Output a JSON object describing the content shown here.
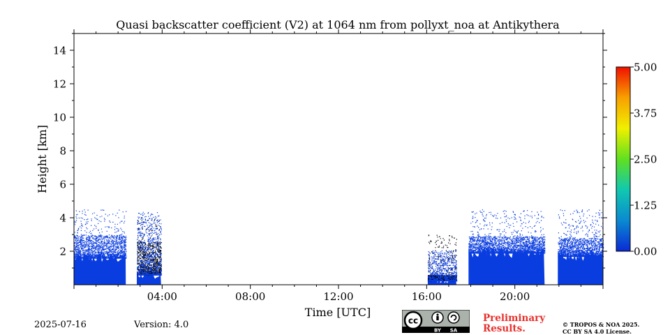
{
  "chart_data": {
    "type": "heatmap",
    "title": "Quasi backscatter coefficient (V2) at 1064 nm from pollyxt_noa at Antikythera",
    "xlabel": "Time [UTC]",
    "ylabel": "Height [km]",
    "xlim_hours": [
      0,
      24
    ],
    "ylim_km": [
      0,
      15
    ],
    "x_ticks": [
      {
        "hour": 4,
        "label": "04:00"
      },
      {
        "hour": 8,
        "label": "08:00"
      },
      {
        "hour": 12,
        "label": "12:00"
      },
      {
        "hour": 16,
        "label": "16:00"
      },
      {
        "hour": 20,
        "label": "20:00"
      }
    ],
    "y_ticks": [
      {
        "value": 2,
        "label": "2"
      },
      {
        "value": 4,
        "label": "4"
      },
      {
        "value": 6,
        "label": "6"
      },
      {
        "value": 8,
        "label": "8"
      },
      {
        "value": 10,
        "label": "10"
      },
      {
        "value": 12,
        "label": "12"
      },
      {
        "value": 14,
        "label": "14"
      }
    ],
    "colorbar": {
      "min": 0.0,
      "max": 5.0,
      "ticks": [
        "0.00",
        "1.25",
        "2.50",
        "3.75",
        "5.00"
      ],
      "colors": [
        "#0a2ad6",
        "#0a8ad0",
        "#10c8b0",
        "#60e020",
        "#f0f000",
        "#f8a000",
        "#f01000"
      ]
    },
    "segments": [
      {
        "start_hour": 0.0,
        "end_hour": 2.35,
        "dense_top_km": 1.6,
        "sparse_top_km": 4.5,
        "peak_top_km": 3.0
      },
      {
        "start_hour": 2.85,
        "end_hour": 3.95,
        "dense_top_km": 0.6,
        "sparse_top_km": 4.0,
        "peak_top_km": 2.6
      },
      {
        "start_hour": 16.05,
        "end_hour": 17.35,
        "dense_top_km": 0.25,
        "sparse_top_km": 3.0,
        "peak_top_km": 0.6
      },
      {
        "start_hour": 17.9,
        "end_hour": 21.35,
        "dense_top_km": 1.9,
        "sparse_top_km": 4.5,
        "peak_top_km": 2.9
      },
      {
        "start_hour": 21.95,
        "end_hour": 24.0,
        "dense_top_km": 1.7,
        "sparse_top_km": 4.5,
        "peak_top_km": 2.8
      }
    ],
    "dense_color": "#0a3de0",
    "sparse_color_low": "#0a3de0",
    "sparse_color_high": "#000000"
  },
  "footer": {
    "date": "2025-07-16",
    "version": "Version: 4.0",
    "preliminary_line1": "Preliminary",
    "preliminary_line2": "Results.",
    "copyright_line1": "© TROPOS & NOA 2025.",
    "copyright_line2": "CC BY SA 4.0 License.",
    "license_badge": {
      "cc": "cc",
      "by": "BY",
      "sa": "SA"
    }
  }
}
